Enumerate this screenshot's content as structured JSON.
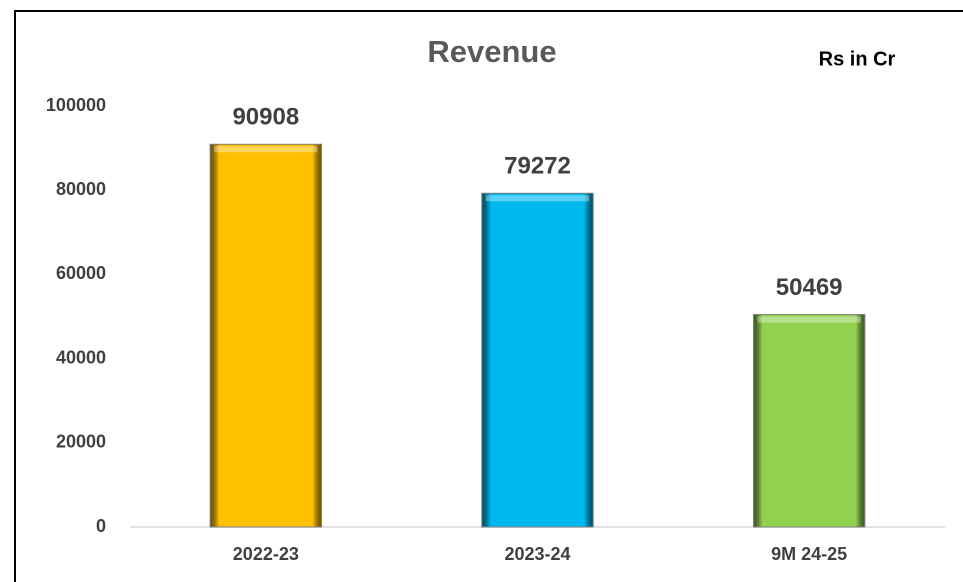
{
  "chart_data": {
    "type": "bar",
    "title": "Revenue",
    "annotation": "Rs in Cr",
    "categories": [
      "2022-23",
      "2023-24",
      "9M 24-25"
    ],
    "values": [
      90908,
      79272,
      50469
    ],
    "colors": [
      "#ffc000",
      "#00b8f0",
      "#92d050"
    ],
    "ylim": [
      0,
      100000
    ],
    "yticks": [
      0,
      20000,
      40000,
      60000,
      80000,
      100000
    ],
    "grid": false
  }
}
